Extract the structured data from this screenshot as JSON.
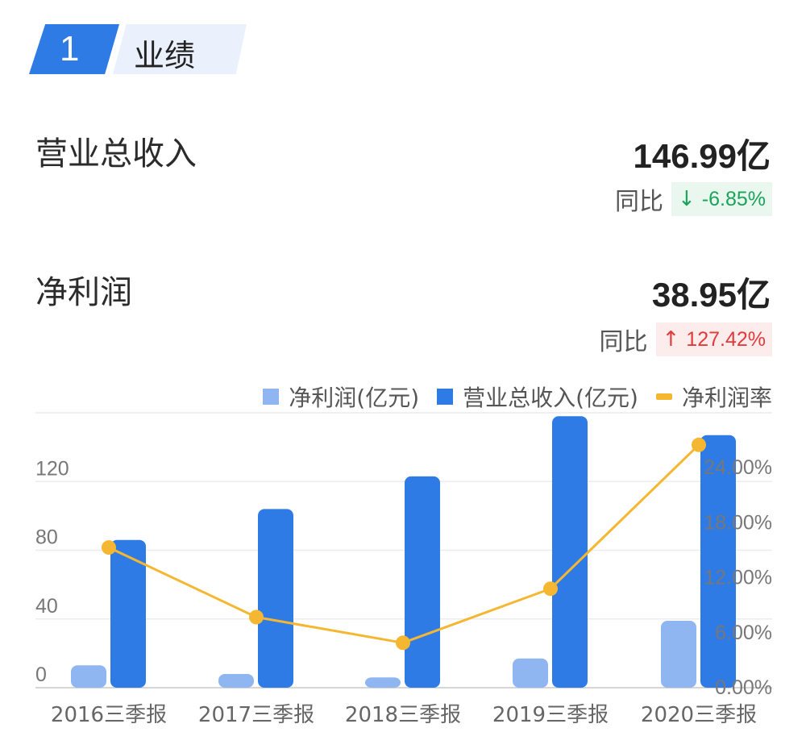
{
  "section": {
    "number": "1",
    "title": "业绩"
  },
  "revenue": {
    "label": "营业总收入",
    "value": "146.99亿",
    "yoy_label": "同比",
    "yoy_arrow": "↓",
    "yoy_value": "-6.85%"
  },
  "net_profit": {
    "label": "净利润",
    "value": "38.95亿",
    "yoy_label": "同比",
    "yoy_arrow": "↑",
    "yoy_value": "127.42%"
  },
  "colors": {
    "net_profit": "#8fb6f0",
    "revenue": "#2f7be6",
    "margin": "#f5b731",
    "up": "#e23a3a",
    "down": "#1aa35a"
  },
  "chart_data": {
    "type": "bar",
    "categories": [
      "2016三季报",
      "2017三季报",
      "2018三季报",
      "2019三季报",
      "2020三季报"
    ],
    "series": [
      {
        "name": "净利润(亿元)",
        "type": "bar",
        "axis": "left",
        "values": [
          13,
          8,
          6,
          17,
          38.95
        ]
      },
      {
        "name": "营业总收入(亿元)",
        "type": "bar",
        "axis": "left",
        "values": [
          86,
          104,
          123,
          158,
          146.99
        ]
      },
      {
        "name": "净利润率",
        "type": "line",
        "axis": "right",
        "values": [
          15.3,
          7.7,
          4.9,
          10.8,
          26.5
        ]
      }
    ],
    "y_left": {
      "ticks": [
        "0",
        "40",
        "80",
        "120"
      ],
      "range": [
        0,
        160
      ]
    },
    "y_right": {
      "ticks": [
        "0.00%",
        "6.00%",
        "12.00%",
        "18.00%",
        "24.00%"
      ],
      "range": [
        0,
        30
      ]
    },
    "legend_position": "top-right",
    "grid": true
  }
}
